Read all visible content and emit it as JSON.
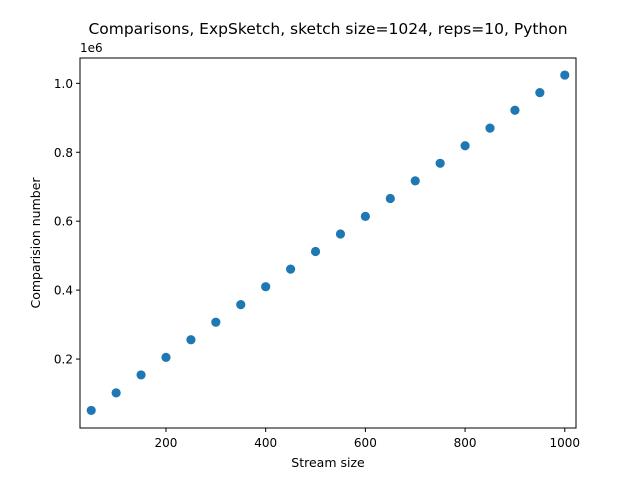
{
  "chart_data": {
    "type": "scatter",
    "title": "Comparisons, ExpSketch, sketch size=1024, reps=10, Python",
    "xlabel": "Stream size",
    "ylabel": "Comparision number",
    "y_offset_label": "1e6",
    "xlim": [
      27.5,
      1022.5
    ],
    "ylim": [
      0,
      1.0735
    ],
    "x_ticks": [
      200,
      400,
      600,
      800,
      1000
    ],
    "y_ticks": [
      0.2,
      0.4,
      0.6,
      0.8,
      1.0
    ],
    "x_tick_labels": [
      "200",
      "400",
      "600",
      "800",
      "1000"
    ],
    "y_tick_labels": [
      "0.2",
      "0.4",
      "0.6",
      "0.8",
      "1.0"
    ],
    "grid": false,
    "marker_color": "#1f77b4",
    "x": [
      50,
      100,
      150,
      200,
      250,
      300,
      350,
      400,
      450,
      500,
      550,
      600,
      650,
      700,
      750,
      800,
      850,
      900,
      950,
      1000
    ],
    "y": [
      0.051,
      0.102,
      0.154,
      0.205,
      0.256,
      0.307,
      0.358,
      0.41,
      0.461,
      0.512,
      0.563,
      0.614,
      0.666,
      0.717,
      0.768,
      0.819,
      0.87,
      0.922,
      0.973,
      1.024
    ]
  }
}
